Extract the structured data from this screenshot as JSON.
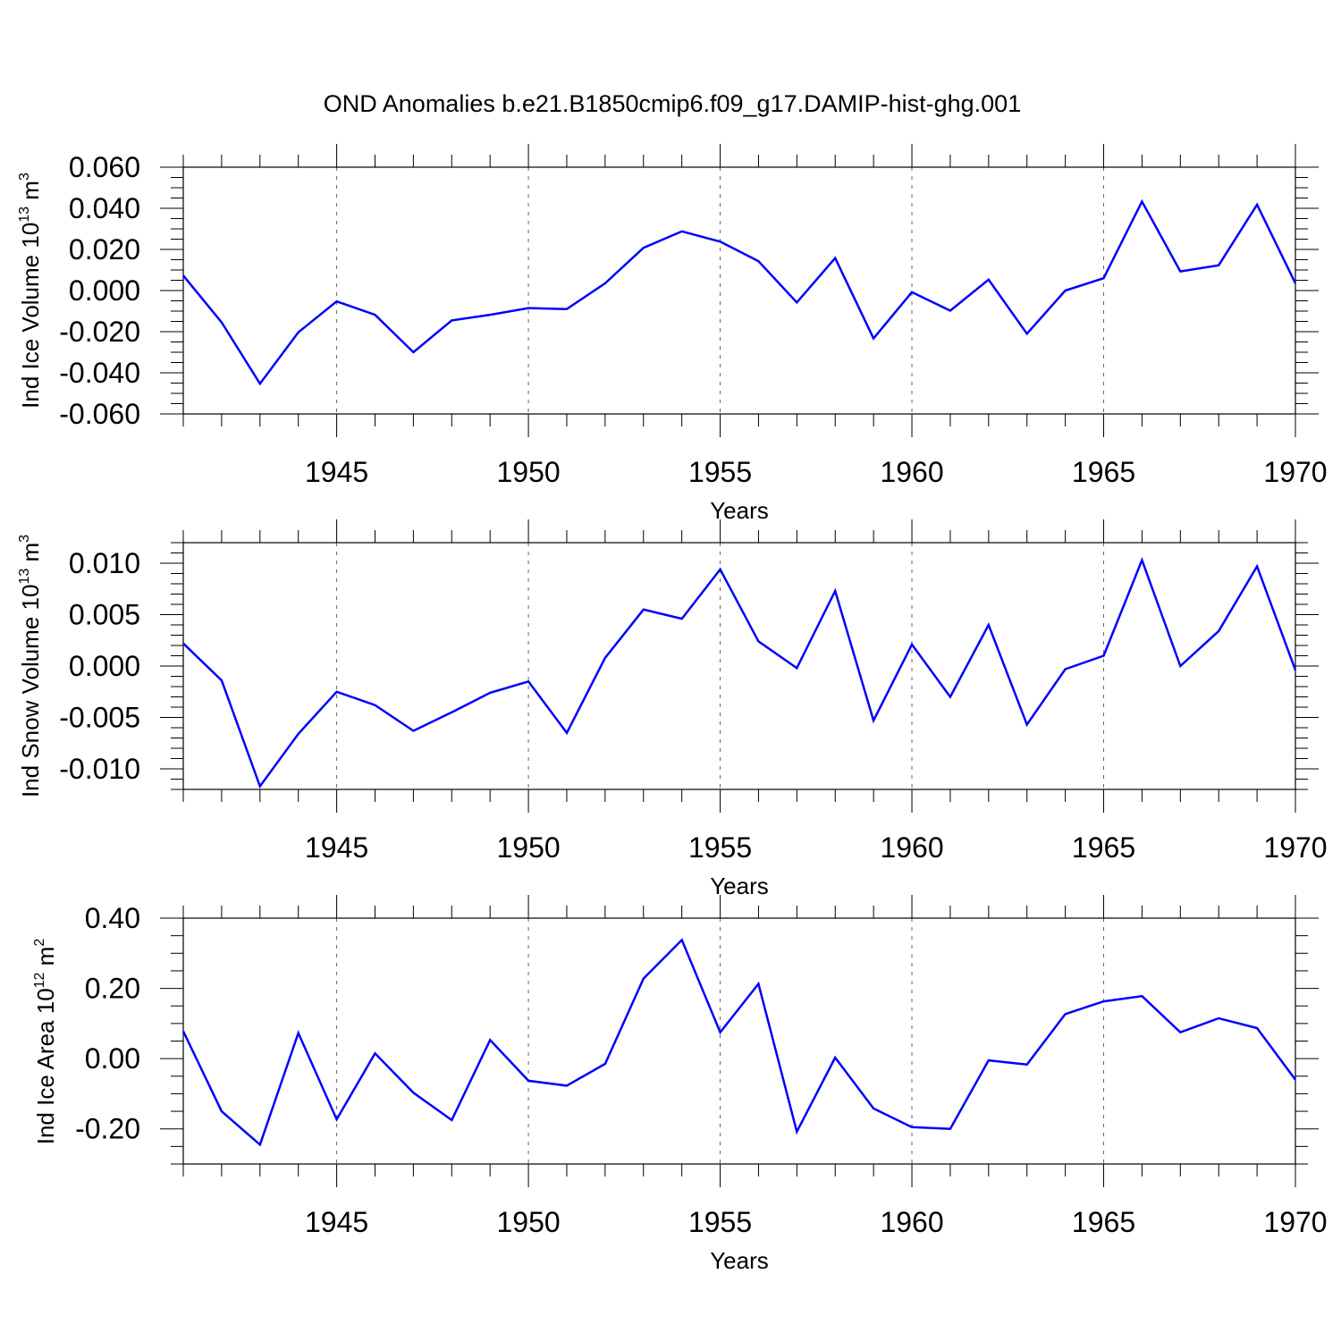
{
  "figure": {
    "title": "OND Anomalies b.e21.B1850cmip6.f09_g17.DAMIP-hist-ghg.001"
  },
  "colors": {
    "series": "#0000ff",
    "axis": "#000000",
    "gridline": "#000000"
  },
  "chart_data": [
    {
      "type": "line",
      "title": "",
      "xlabel": "Years",
      "ylabel": {
        "main": "Ind Ice Volume 10",
        "exp": "13",
        "unit": " m",
        "unit_exp": "3"
      },
      "xlim": [
        1941,
        1970
      ],
      "ylim": [
        -0.06,
        0.06
      ],
      "x_ticks": [
        1945,
        1950,
        1955,
        1960,
        1965,
        1970
      ],
      "y_ticks": [
        -0.06,
        -0.04,
        -0.02,
        0.0,
        0.02,
        0.04,
        0.06
      ],
      "y_tick_labels": [
        "-0.060",
        "-0.040",
        "-0.020",
        "0.000",
        "0.020",
        "0.040",
        "0.060"
      ],
      "y_minor_step": 0.005,
      "grid": "vertical dashed at major x ticks",
      "x": [
        1941,
        1942,
        1943,
        1944,
        1945,
        1946,
        1947,
        1948,
        1949,
        1950,
        1951,
        1952,
        1953,
        1954,
        1955,
        1956,
        1957,
        1958,
        1959,
        1960,
        1961,
        1962,
        1963,
        1964,
        1965,
        1966,
        1967,
        1968,
        1969,
        1970
      ],
      "series": [
        {
          "name": "Ind Ice Volume",
          "values": [
            0.0073,
            -0.0155,
            -0.0453,
            -0.0203,
            -0.0053,
            -0.0118,
            -0.03,
            -0.0145,
            -0.0118,
            -0.0085,
            -0.009,
            0.0035,
            0.0208,
            0.0288,
            0.0238,
            0.0143,
            -0.0058,
            0.0158,
            -0.0233,
            -0.0008,
            -0.0098,
            0.0053,
            -0.021,
            0.0,
            0.006,
            0.0433,
            0.0093,
            0.0123,
            0.0418,
            0.0035
          ]
        }
      ]
    },
    {
      "type": "line",
      "title": "",
      "xlabel": "Years",
      "ylabel": {
        "main": "Ind Snow Volume 10",
        "exp": "13",
        "unit": " m",
        "unit_exp": "3"
      },
      "xlim": [
        1941,
        1970
      ],
      "ylim": [
        -0.012,
        0.012
      ],
      "x_ticks": [
        1945,
        1950,
        1955,
        1960,
        1965,
        1970
      ],
      "y_ticks": [
        -0.01,
        -0.005,
        0.0,
        0.005,
        0.01
      ],
      "y_tick_labels": [
        "-0.010",
        "-0.005",
        "0.000",
        "0.005",
        "0.010"
      ],
      "y_minor_step": 0.001,
      "grid": "vertical dashed at major x ticks",
      "x": [
        1941,
        1942,
        1943,
        1944,
        1945,
        1946,
        1947,
        1948,
        1949,
        1950,
        1951,
        1952,
        1953,
        1954,
        1955,
        1956,
        1957,
        1958,
        1959,
        1960,
        1961,
        1962,
        1963,
        1964,
        1965,
        1966,
        1967,
        1968,
        1969,
        1970
      ],
      "series": [
        {
          "name": "Ind Snow Volume",
          "values": [
            0.0022,
            -0.0014,
            -0.0117,
            -0.0066,
            -0.0025,
            -0.0038,
            -0.0063,
            -0.0045,
            -0.0026,
            -0.0015,
            -0.0065,
            0.0008,
            0.0055,
            0.0046,
            0.0094,
            0.0024,
            -0.0002,
            0.0073,
            -0.0053,
            0.0021,
            -0.003,
            0.004,
            -0.0057,
            -0.0003,
            0.001,
            0.0103,
            0.0,
            0.0034,
            0.0097,
            -0.0004
          ]
        }
      ]
    },
    {
      "type": "line",
      "title": "",
      "xlabel": "Years",
      "ylabel": {
        "main": "Ind Ice Area 10",
        "exp": "12",
        "unit": " m",
        "unit_exp": "2"
      },
      "xlim": [
        1941,
        1970
      ],
      "ylim": [
        -0.3,
        0.4
      ],
      "x_ticks": [
        1945,
        1950,
        1955,
        1960,
        1965,
        1970
      ],
      "y_ticks": [
        -0.2,
        0.0,
        0.2,
        0.4
      ],
      "y_tick_labels": [
        "-0.20",
        "0.00",
        "0.20",
        "0.40"
      ],
      "y_minor_step": 0.05,
      "grid": "vertical dashed at major x ticks",
      "x": [
        1941,
        1942,
        1943,
        1944,
        1945,
        1946,
        1947,
        1948,
        1949,
        1950,
        1951,
        1952,
        1953,
        1954,
        1955,
        1956,
        1957,
        1958,
        1959,
        1960,
        1961,
        1962,
        1963,
        1964,
        1965,
        1966,
        1967,
        1968,
        1969,
        1970
      ],
      "series": [
        {
          "name": "Ind Ice Area",
          "values": [
            0.078,
            -0.15,
            -0.245,
            0.073,
            -0.173,
            0.015,
            -0.097,
            -0.175,
            0.053,
            -0.063,
            -0.077,
            -0.015,
            0.228,
            0.338,
            0.075,
            0.213,
            -0.208,
            0.003,
            -0.142,
            -0.195,
            -0.2,
            -0.005,
            -0.017,
            0.127,
            0.163,
            0.178,
            0.075,
            0.115,
            0.087,
            -0.06
          ]
        }
      ]
    }
  ]
}
